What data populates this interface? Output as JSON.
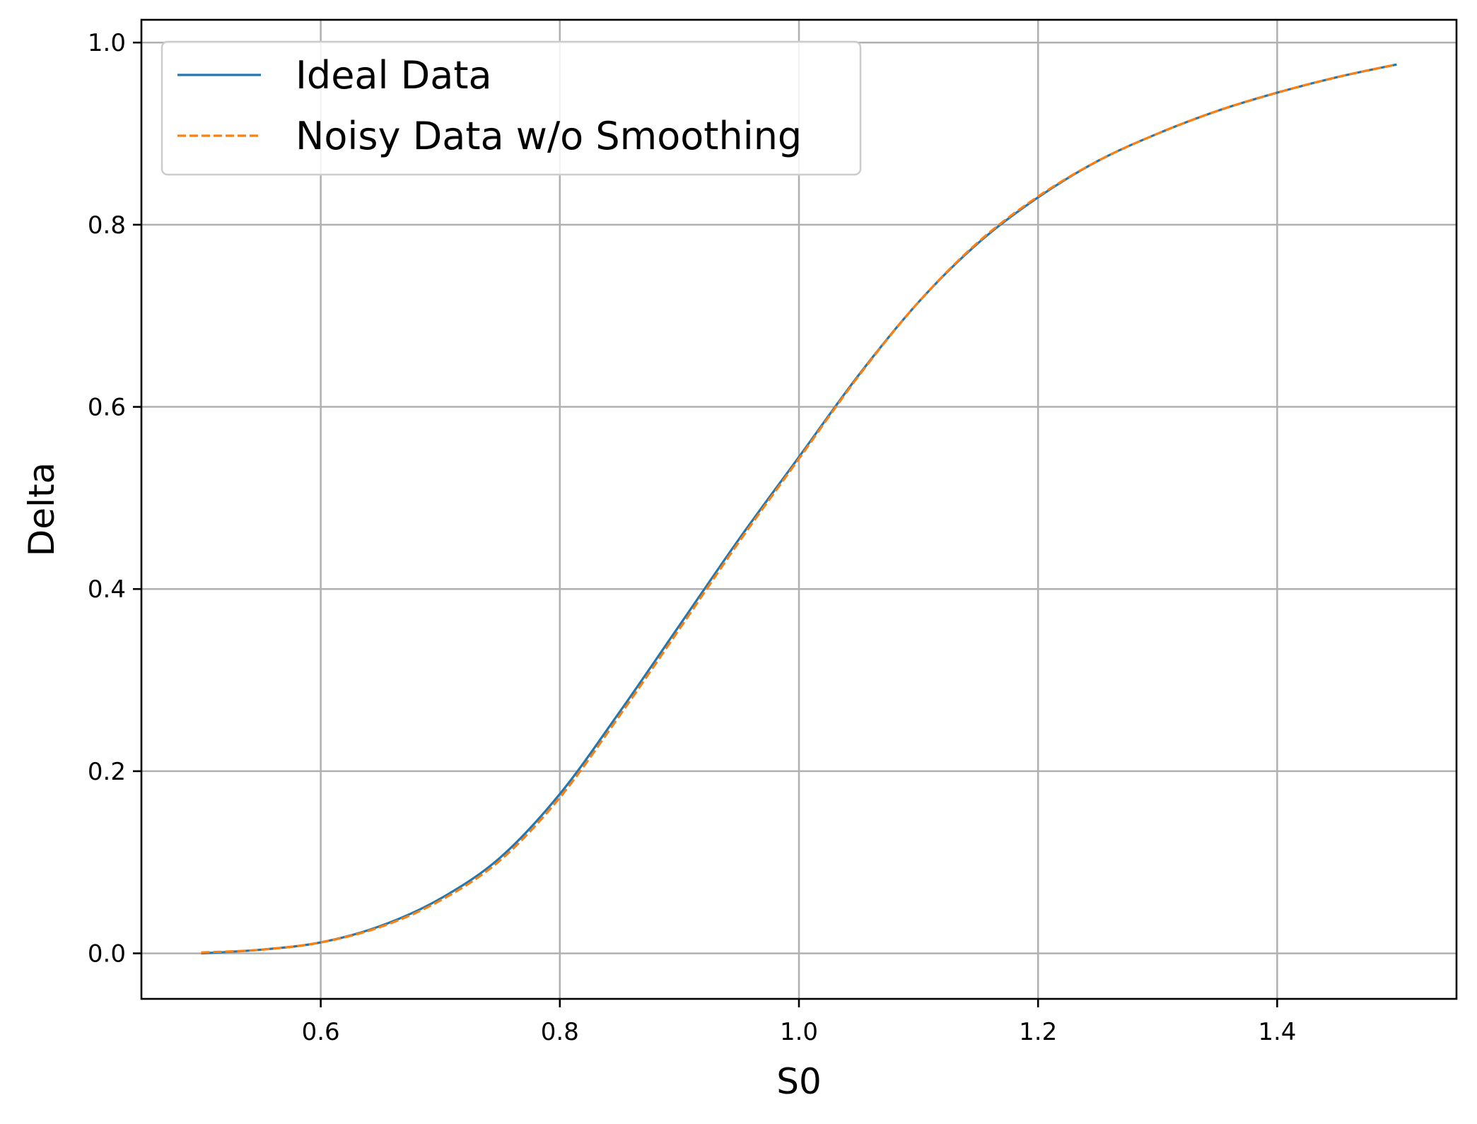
{
  "chart_data": {
    "type": "line",
    "title": "",
    "xlabel": "S0",
    "ylabel": "Delta",
    "xlim": [
      0.45,
      1.55
    ],
    "ylim": [
      -0.05,
      1.025
    ],
    "xticks": [
      0.6,
      0.8,
      1.0,
      1.2,
      1.4
    ],
    "xtick_labels": [
      "0.6",
      "0.8",
      "1.0",
      "1.2",
      "1.4"
    ],
    "yticks": [
      0.0,
      0.2,
      0.4,
      0.6,
      0.8,
      1.0
    ],
    "ytick_labels": [
      "0.0",
      "0.2",
      "0.4",
      "0.6",
      "0.8",
      "1.0"
    ],
    "grid": true,
    "legend_position": "top-left",
    "series": [
      {
        "name": "Ideal Data",
        "color": "#1f77b4",
        "style": "solid",
        "x": [
          0.5,
          0.55,
          0.6,
          0.65,
          0.7,
          0.75,
          0.8,
          0.85,
          0.9,
          0.95,
          1.0,
          1.05,
          1.1,
          1.15,
          1.2,
          1.25,
          1.3,
          1.35,
          1.4,
          1.45,
          1.5
        ],
        "y": [
          0.0,
          0.004,
          0.012,
          0.03,
          0.06,
          0.105,
          0.175,
          0.265,
          0.36,
          0.455,
          0.545,
          0.635,
          0.715,
          0.78,
          0.83,
          0.87,
          0.9,
          0.925,
          0.945,
          0.962,
          0.976
        ]
      },
      {
        "name": "Noisy Data w/o Smoothing",
        "color": "#ff7f0e",
        "style": "dashed",
        "x": [
          0.5,
          0.55,
          0.6,
          0.65,
          0.7,
          0.75,
          0.8,
          0.85,
          0.9,
          0.95,
          1.0,
          1.05,
          1.1,
          1.15,
          1.2,
          1.25,
          1.3,
          1.35,
          1.4,
          1.45,
          1.5
        ],
        "y": [
          0.001,
          0.004,
          0.012,
          0.029,
          0.058,
          0.102,
          0.171,
          0.261,
          0.356,
          0.452,
          0.543,
          0.634,
          0.715,
          0.781,
          0.831,
          0.87,
          0.9,
          0.925,
          0.945,
          0.962,
          0.976
        ]
      }
    ]
  }
}
